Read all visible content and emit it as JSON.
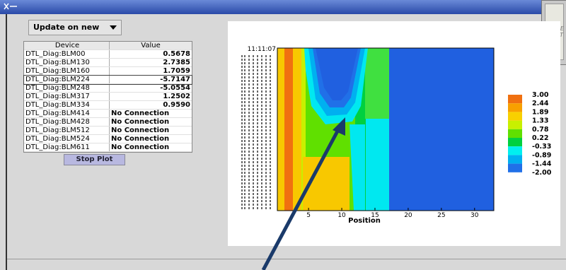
{
  "dropdown": "Update on new",
  "table": {
    "headers": [
      "Device",
      "Value"
    ],
    "rows": [
      [
        "DTL_Diag:BLM00",
        "0.5678"
      ],
      [
        "DTL_Diag:BLM130",
        "2.7385"
      ],
      [
        "DTL_Diag:BLM160",
        "1.7059"
      ],
      [
        "DTL_Diag:BLM224",
        "-5.7147"
      ],
      [
        "DTL_Diag:BLM248",
        "-5.0554"
      ],
      [
        "DTL_Diag:BLM317",
        "1.2502"
      ],
      [
        "DTL_Diag:BLM334",
        "0.9590"
      ],
      [
        "DTL_Diag:BLM414",
        "No Connection"
      ],
      [
        "DTL_Diag:BLM428",
        "No Connection"
      ],
      [
        "DTL_Diag:BLM512",
        "No Connection"
      ],
      [
        "DTL_Diag:BLM524",
        "No Connection"
      ],
      [
        "DTL_Diag:BLM611",
        "No Connection"
      ]
    ]
  },
  "button": "Stop Plot",
  "plot": {
    "xlabel": "Position",
    "xlim": [
      0.3,
      32.9
    ],
    "xticks": [
      5,
      10,
      15,
      20,
      25,
      30
    ],
    "ytop_label": "11:11:07",
    "legend_labels": [
      "3.00",
      "2.44",
      "1.89",
      "1.33",
      "0.78",
      "0.22",
      "-0.33",
      "-0.89",
      "-1.44",
      "-2.00"
    ],
    "legend_colors": [
      "#f07010",
      "#f8a000",
      "#f8d000",
      "#c8f000",
      "#60e000",
      "#00d040",
      "#00f0f0",
      "#00b0f0",
      "#2070e8"
    ]
  },
  "background_window": [
    "ME",
    "DT"
  ]
}
